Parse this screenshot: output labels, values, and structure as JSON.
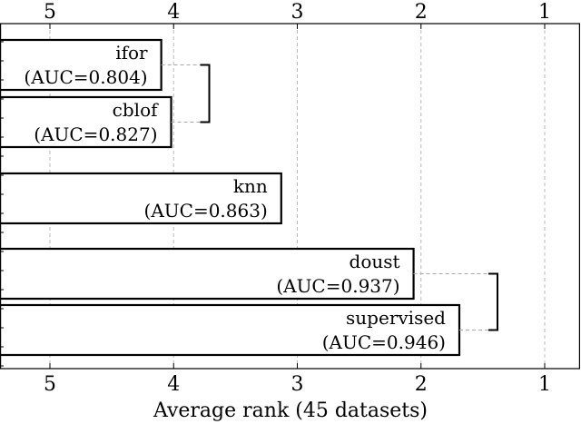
{
  "chart_data": {
    "type": "bar",
    "orientation": "horizontal",
    "xlabel": "Average rank (45 datasets)",
    "xlim": [
      5.3,
      0.7
    ],
    "x_inverted": true,
    "xticks": [
      5,
      4,
      3,
      2,
      1
    ],
    "xtick_labels": [
      "5",
      "4",
      "3",
      "2",
      "1"
    ],
    "grid": "vertical dashed",
    "bars": [
      {
        "name": "ifor",
        "rank": 4.1,
        "auc_label": "(AUC=0.804)"
      },
      {
        "name": "cblof",
        "rank": 4.02,
        "auc_label": "(AUC=0.827)"
      },
      {
        "name": "knn",
        "rank": 3.13,
        "auc_label": "(AUC=0.863)"
      },
      {
        "name": "doust",
        "rank": 2.06,
        "auc_label": "(AUC=0.937)"
      },
      {
        "name": "supervised",
        "rank": 1.69,
        "auc_label": "(AUC=0.946)"
      }
    ],
    "significance_groups": [
      {
        "members": [
          "ifor",
          "cblof"
        ]
      },
      {
        "members": [
          "doust",
          "supervised"
        ]
      }
    ]
  }
}
